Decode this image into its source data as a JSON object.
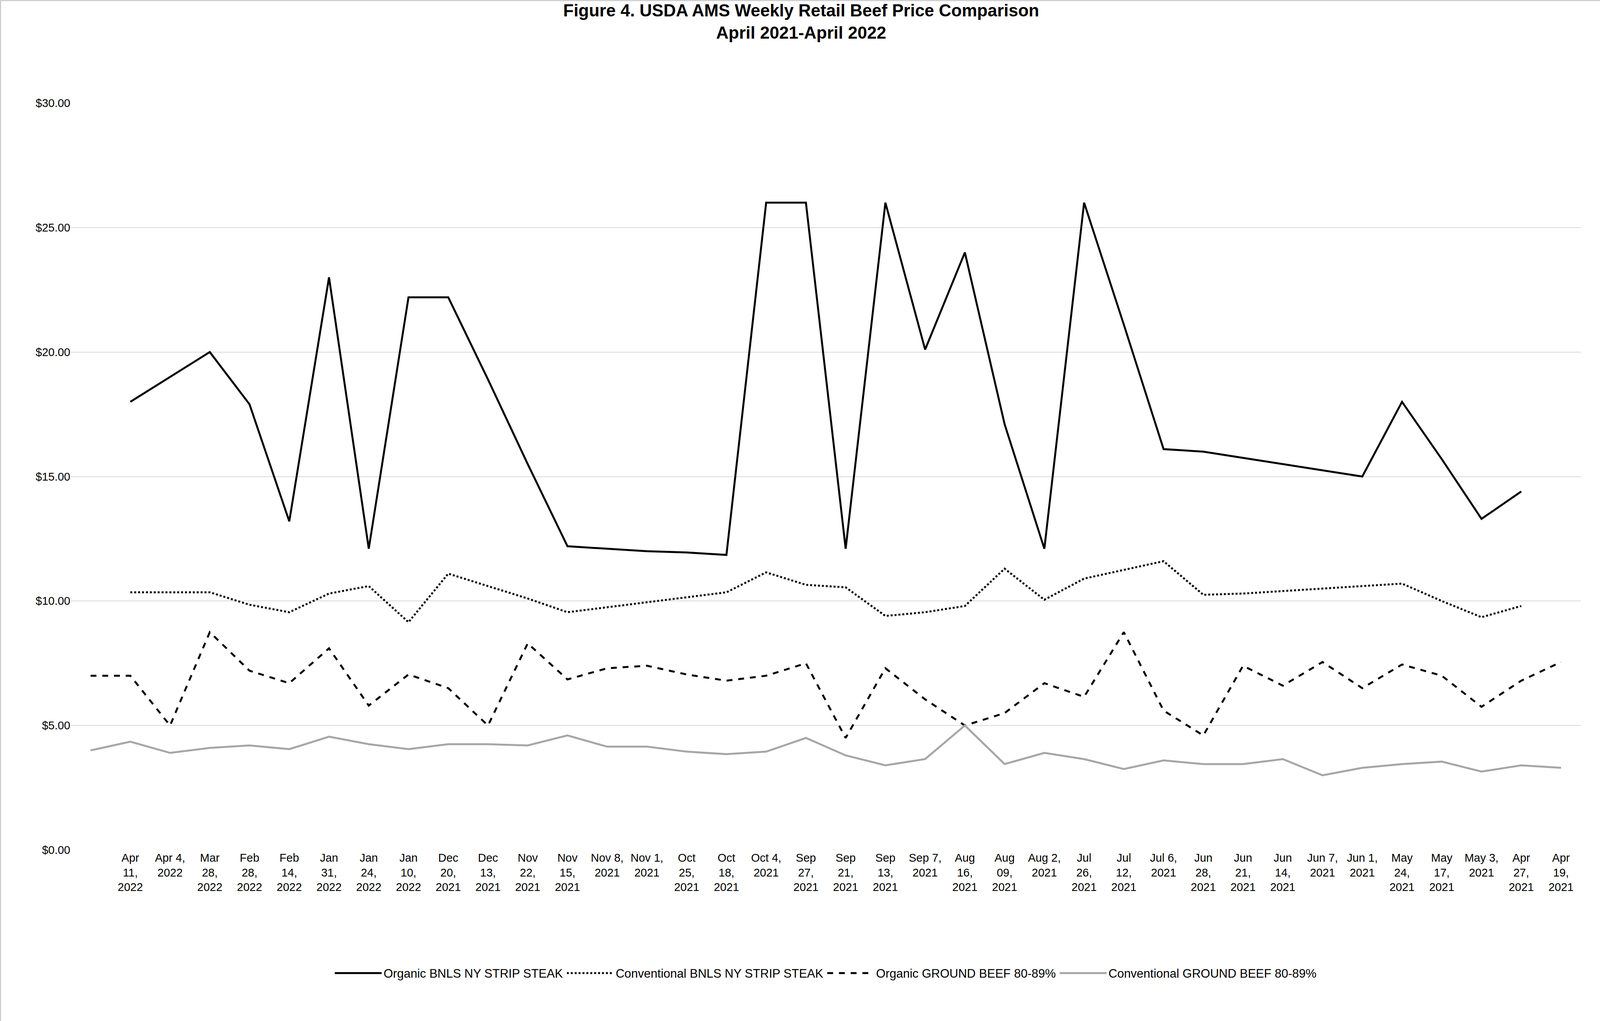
{
  "chart_data": {
    "type": "line",
    "title": "Figure 4. USDA AMS Weekly Retail Beef Price Comparison",
    "subtitle": "April 2021-April 2022",
    "categories": [
      null,
      "Apr 11, 2022",
      "Apr 4, 2022",
      "Mar 28, 2022",
      "Feb 28, 2022",
      "Feb 14, 2022",
      "Jan 31, 2022",
      "Jan 24, 2022",
      "Jan 10, 2022",
      "Dec 20, 2021",
      "Dec 13, 2021",
      "Nov 22, 2021",
      "Nov 15, 2021",
      "Nov 8, 2021",
      "Nov 1, 2021",
      "Oct 25, 2021",
      "Oct 18, 2021",
      "Oct 4, 2021",
      "Sep 27, 2021",
      "Sep 21, 2021",
      "Sep 13, 2021",
      "Sep 7, 2021",
      "Aug 16, 2021",
      "Aug 09, 2021",
      "Aug 2, 2021",
      "Jul 26, 2021",
      "Jul 12, 2021",
      "Jul 6, 2021",
      "Jun 28, 2021",
      "Jun 21, 2021",
      "Jun 14, 2021",
      "Jun 7, 2021",
      "Jun 1, 2021",
      "May 24, 2021",
      "May 17, 2021",
      "May 3, 2021",
      "Apr 27, 2021",
      "Apr 19, 2021"
    ],
    "series": [
      {
        "name": "Organic BNLS NY STRIP STEAK",
        "color": "#000000",
        "line_style": "solid",
        "values": [
          null,
          18.0,
          19.0,
          20.0,
          17.9,
          13.2,
          23.0,
          12.1,
          22.2,
          22.2,
          18.9,
          15.5,
          12.2,
          12.1,
          12.0,
          11.95,
          11.85,
          26.0,
          26.0,
          12.1,
          26.0,
          20.1,
          24.0,
          17.1,
          12.1,
          26.0,
          21.1,
          16.1,
          16.0,
          15.75,
          15.5,
          15.25,
          15.0,
          18.0,
          15.7,
          13.3,
          14.4,
          null
        ]
      },
      {
        "name": "Conventional BNLS NY STRIP STEAK",
        "color": "#000000",
        "line_style": "dot",
        "values": [
          null,
          10.35,
          10.35,
          10.35,
          9.85,
          9.55,
          10.3,
          10.6,
          9.15,
          11.1,
          10.6,
          10.1,
          9.55,
          9.75,
          9.95,
          10.15,
          10.35,
          11.15,
          10.65,
          10.55,
          9.4,
          9.55,
          9.8,
          11.3,
          10.05,
          10.9,
          11.25,
          11.6,
          10.25,
          10.3,
          10.4,
          10.5,
          10.6,
          10.7,
          10.0,
          9.35,
          9.8,
          null
        ]
      },
      {
        "name": "Organic GROUND BEEF 80-89%",
        "color": "#000000",
        "line_style": "dash",
        "values": [
          7.0,
          7.0,
          5.0,
          8.75,
          7.2,
          6.7,
          8.1,
          5.8,
          7.05,
          6.5,
          5.0,
          8.3,
          6.85,
          7.3,
          7.4,
          7.05,
          6.8,
          7.0,
          7.5,
          4.5,
          7.3,
          6.05,
          5.0,
          5.5,
          6.7,
          6.15,
          8.75,
          5.6,
          4.6,
          7.4,
          6.6,
          7.55,
          6.5,
          7.45,
          7.0,
          5.75,
          6.8,
          7.55
        ]
      },
      {
        "name": "Conventional GROUND BEEF 80-89%",
        "color": "#a6a6a6",
        "line_style": "solid",
        "values": [
          4.0,
          4.35,
          3.9,
          4.1,
          4.2,
          4.05,
          4.55,
          4.25,
          4.05,
          4.25,
          4.25,
          4.2,
          4.6,
          4.15,
          4.15,
          3.95,
          3.85,
          3.95,
          4.5,
          3.8,
          3.4,
          3.65,
          5.0,
          3.45,
          3.9,
          3.65,
          3.25,
          3.6,
          3.45,
          3.45,
          3.65,
          3.0,
          3.3,
          3.45,
          3.55,
          3.15,
          3.4,
          3.3
        ]
      }
    ],
    "ylim": [
      0,
      30
    ],
    "yticks": [
      {
        "value": 0,
        "label": "$0.00"
      },
      {
        "value": 5,
        "label": "$5.00"
      },
      {
        "value": 10,
        "label": "$10.00"
      },
      {
        "value": 15,
        "label": "$15.00"
      },
      {
        "value": 20,
        "label": "$20.00"
      },
      {
        "value": 25,
        "label": "$25.00"
      },
      {
        "value": 30,
        "label": "$30.00"
      }
    ],
    "grid": true,
    "legend": "bottom"
  }
}
